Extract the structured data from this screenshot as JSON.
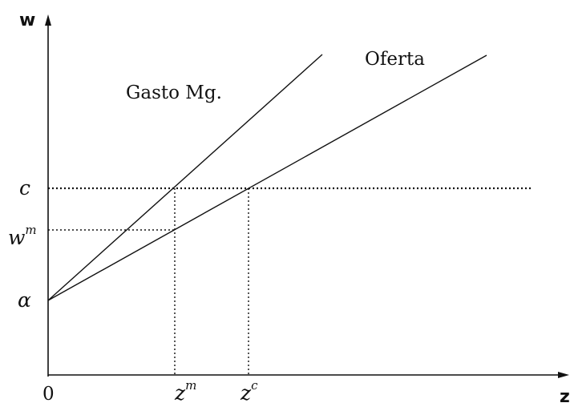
{
  "diagram": {
    "axes": {
      "y_label": "w",
      "x_label": "z",
      "origin_label": "0"
    },
    "curves": {
      "marginal_cost": {
        "label": "Gasto Mg."
      },
      "supply": {
        "label": "Oferta"
      }
    },
    "y_ticks": {
      "c": {
        "base": "c",
        "sup": ""
      },
      "wm": {
        "base": "w",
        "sup": "m"
      },
      "alpha": {
        "base": "α",
        "sup": ""
      }
    },
    "x_ticks": {
      "zm": {
        "base": "z",
        "sup": "m"
      },
      "zc": {
        "base": "z",
        "sup": "c"
      }
    }
  }
}
